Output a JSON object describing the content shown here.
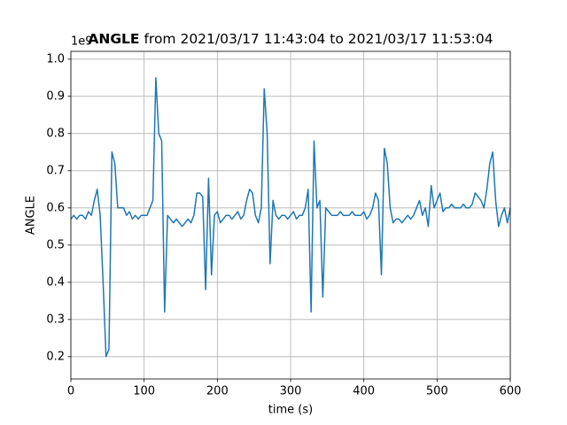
{
  "chart_data": {
    "type": "line",
    "title_bold": "ANGLE",
    "title": "from 2021/03/17 11:43:04 to 2021/03/17 11:53:04",
    "xlabel": "time (s)",
    "ylabel": "ANGLE",
    "offset_label": "1e9",
    "xlim": [
      0,
      600
    ],
    "xticks": [
      0,
      100,
      200,
      300,
      400,
      500,
      600
    ],
    "ylim": [
      0.14,
      1.021
    ],
    "yticks": [
      0.2,
      0.3,
      0.4,
      0.5,
      0.6,
      0.7,
      0.8,
      0.9,
      {
        "value": 1,
        "label": "1.0"
      }
    ],
    "grid": true,
    "x": [
      0,
      4,
      8,
      12,
      16,
      20,
      24,
      28,
      32,
      36,
      40,
      44,
      48,
      52,
      56,
      60,
      64,
      68,
      72,
      76,
      80,
      84,
      88,
      92,
      96,
      100,
      104,
      108,
      112,
      116,
      120,
      124,
      128,
      132,
      136,
      140,
      144,
      148,
      152,
      156,
      160,
      164,
      168,
      172,
      176,
      180,
      184,
      188,
      192,
      196,
      200,
      204,
      208,
      212,
      216,
      220,
      224,
      228,
      232,
      236,
      240,
      244,
      248,
      252,
      256,
      260,
      264,
      268,
      272,
      276,
      280,
      284,
      288,
      292,
      296,
      300,
      304,
      308,
      312,
      316,
      320,
      324,
      328,
      332,
      336,
      340,
      344,
      348,
      352,
      356,
      360,
      364,
      368,
      372,
      376,
      380,
      384,
      388,
      392,
      396,
      400,
      404,
      408,
      412,
      416,
      420,
      424,
      428,
      432,
      436,
      440,
      444,
      448,
      452,
      456,
      460,
      464,
      468,
      472,
      476,
      480,
      484,
      488,
      492,
      496,
      500,
      504,
      508,
      512,
      516,
      520,
      524,
      528,
      532,
      536,
      540,
      544,
      548,
      552,
      556,
      560,
      564,
      568,
      572,
      576,
      580,
      584,
      588,
      592,
      596,
      600
    ],
    "series": [
      {
        "color": "#1f77b4",
        "values": [
          0.57,
          0.58,
          0.57,
          0.58,
          0.58,
          0.57,
          0.59,
          0.58,
          0.62,
          0.65,
          0.58,
          0.4,
          0.2,
          0.22,
          0.75,
          0.72,
          0.6,
          0.6,
          0.6,
          0.58,
          0.59,
          0.57,
          0.58,
          0.57,
          0.58,
          0.58,
          0.58,
          0.6,
          0.62,
          0.95,
          0.8,
          0.78,
          0.32,
          0.58,
          0.57,
          0.56,
          0.57,
          0.56,
          0.55,
          0.56,
          0.57,
          0.56,
          0.58,
          0.64,
          0.64,
          0.63,
          0.38,
          0.68,
          0.42,
          0.58,
          0.59,
          0.56,
          0.57,
          0.58,
          0.58,
          0.57,
          0.58,
          0.59,
          0.57,
          0.58,
          0.62,
          0.65,
          0.64,
          0.58,
          0.56,
          0.6,
          0.92,
          0.8,
          0.45,
          0.62,
          0.58,
          0.57,
          0.58,
          0.58,
          0.57,
          0.58,
          0.59,
          0.57,
          0.58,
          0.58,
          0.6,
          0.65,
          0.32,
          0.78,
          0.6,
          0.62,
          0.36,
          0.6,
          0.59,
          0.58,
          0.58,
          0.58,
          0.59,
          0.58,
          0.58,
          0.58,
          0.59,
          0.58,
          0.58,
          0.58,
          0.59,
          0.57,
          0.58,
          0.6,
          0.64,
          0.62,
          0.42,
          0.76,
          0.72,
          0.6,
          0.56,
          0.57,
          0.57,
          0.56,
          0.57,
          0.58,
          0.57,
          0.58,
          0.6,
          0.62,
          0.58,
          0.6,
          0.55,
          0.66,
          0.6,
          0.62,
          0.64,
          0.59,
          0.6,
          0.6,
          0.61,
          0.6,
          0.6,
          0.6,
          0.61,
          0.6,
          0.6,
          0.61,
          0.64,
          0.63,
          0.62,
          0.6,
          0.65,
          0.72,
          0.75,
          0.62,
          0.55,
          0.58,
          0.6,
          0.56,
          0.6
        ]
      }
    ]
  }
}
